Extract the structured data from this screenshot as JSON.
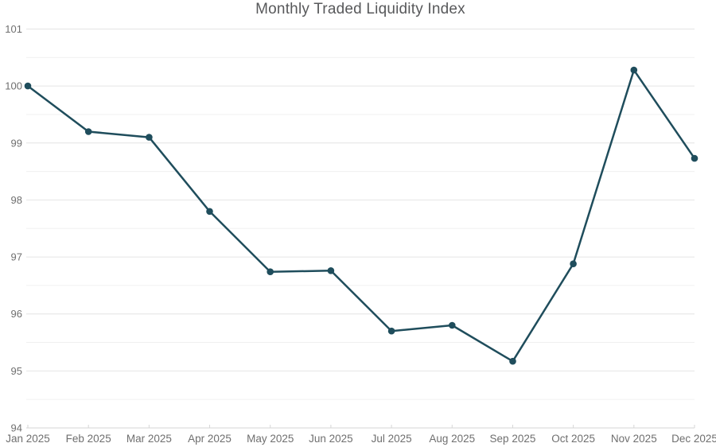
{
  "page": {
    "background": "#ffffff"
  },
  "chart_data": {
    "type": "line",
    "title": "Monthly Traded Liquidity Index",
    "categories": [
      "Jan 2025",
      "Feb 2025",
      "Mar 2025",
      "Apr 2025",
      "May 2025",
      "Jun 2025",
      "Jul 2025",
      "Aug 2025",
      "Sep 2025",
      "Oct 2025",
      "Nov 2025",
      "Dec 2025"
    ],
    "series": [
      {
        "name": "Monthly Traded Liquidity Index",
        "values": [
          100.0,
          99.2,
          99.1,
          97.8,
          96.74,
          96.76,
          95.7,
          95.8,
          95.17,
          96.88,
          100.28,
          98.73
        ]
      }
    ],
    "xlabel": "",
    "ylabel": "",
    "ylim": [
      94,
      101
    ],
    "y_tick_step": 1,
    "y_minor_step": 0.5,
    "y_tick_labels": [
      "94",
      "95",
      "96",
      "97",
      "98",
      "99",
      "100",
      "101"
    ],
    "grid": true,
    "legend": false,
    "markers": true,
    "colors": {
      "line": "#1f4d5c",
      "marker": "#1f4d5c",
      "grid_major": "#e4e4e4",
      "grid_minor": "#f0f0f0",
      "axis": "#d6d6d6",
      "tick_label": "#6f6f6f",
      "title": "#58595b"
    }
  }
}
